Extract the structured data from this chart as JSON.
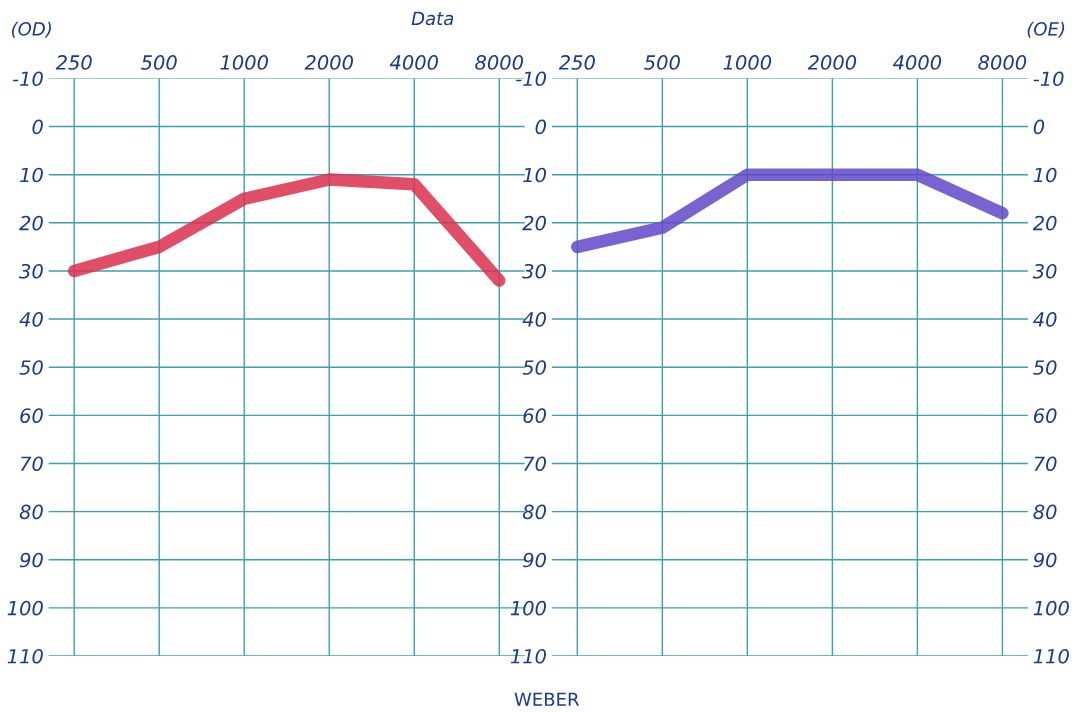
{
  "chart_data": [
    {
      "type": "line",
      "title": "(OD)",
      "categories": [
        "250",
        "500",
        "1000",
        "2000",
        "4000",
        "8000"
      ],
      "series": [
        {
          "color": "#dc2f4e",
          "values": [
            30,
            25,
            15,
            11,
            12,
            32
          ]
        }
      ],
      "ylim": [
        110,
        -10
      ],
      "yticks": [
        -10,
        0,
        10,
        20,
        30,
        40,
        50,
        60,
        70,
        80,
        90,
        100,
        110
      ],
      "grid": true,
      "tick_labels": "y",
      "line_style": "solid",
      "marker": "none",
      "annotations": [
        "Data"
      ]
    },
    {
      "type": "line",
      "title": "(OE)",
      "categories": [
        "250",
        "500",
        "1000",
        "2000",
        "4000",
        "8000"
      ],
      "series": [
        {
          "color": "#6248c8",
          "values": [
            25,
            21,
            10,
            10,
            10,
            18
          ]
        }
      ],
      "ylim": [
        110,
        -10
      ],
      "yticks": [
        -10,
        0,
        10,
        20,
        30,
        40,
        50,
        60,
        70,
        80,
        90,
        100,
        110
      ],
      "y2lim": [
        110,
        -10
      ],
      "y2ticks": [
        -10,
        0,
        10,
        20,
        30,
        40,
        50,
        60,
        70,
        80,
        90,
        100,
        110
      ],
      "grid": true,
      "line_style": "solid",
      "marker": "none",
      "annotations": [
        "WEBER"
      ]
    }
  ]
}
